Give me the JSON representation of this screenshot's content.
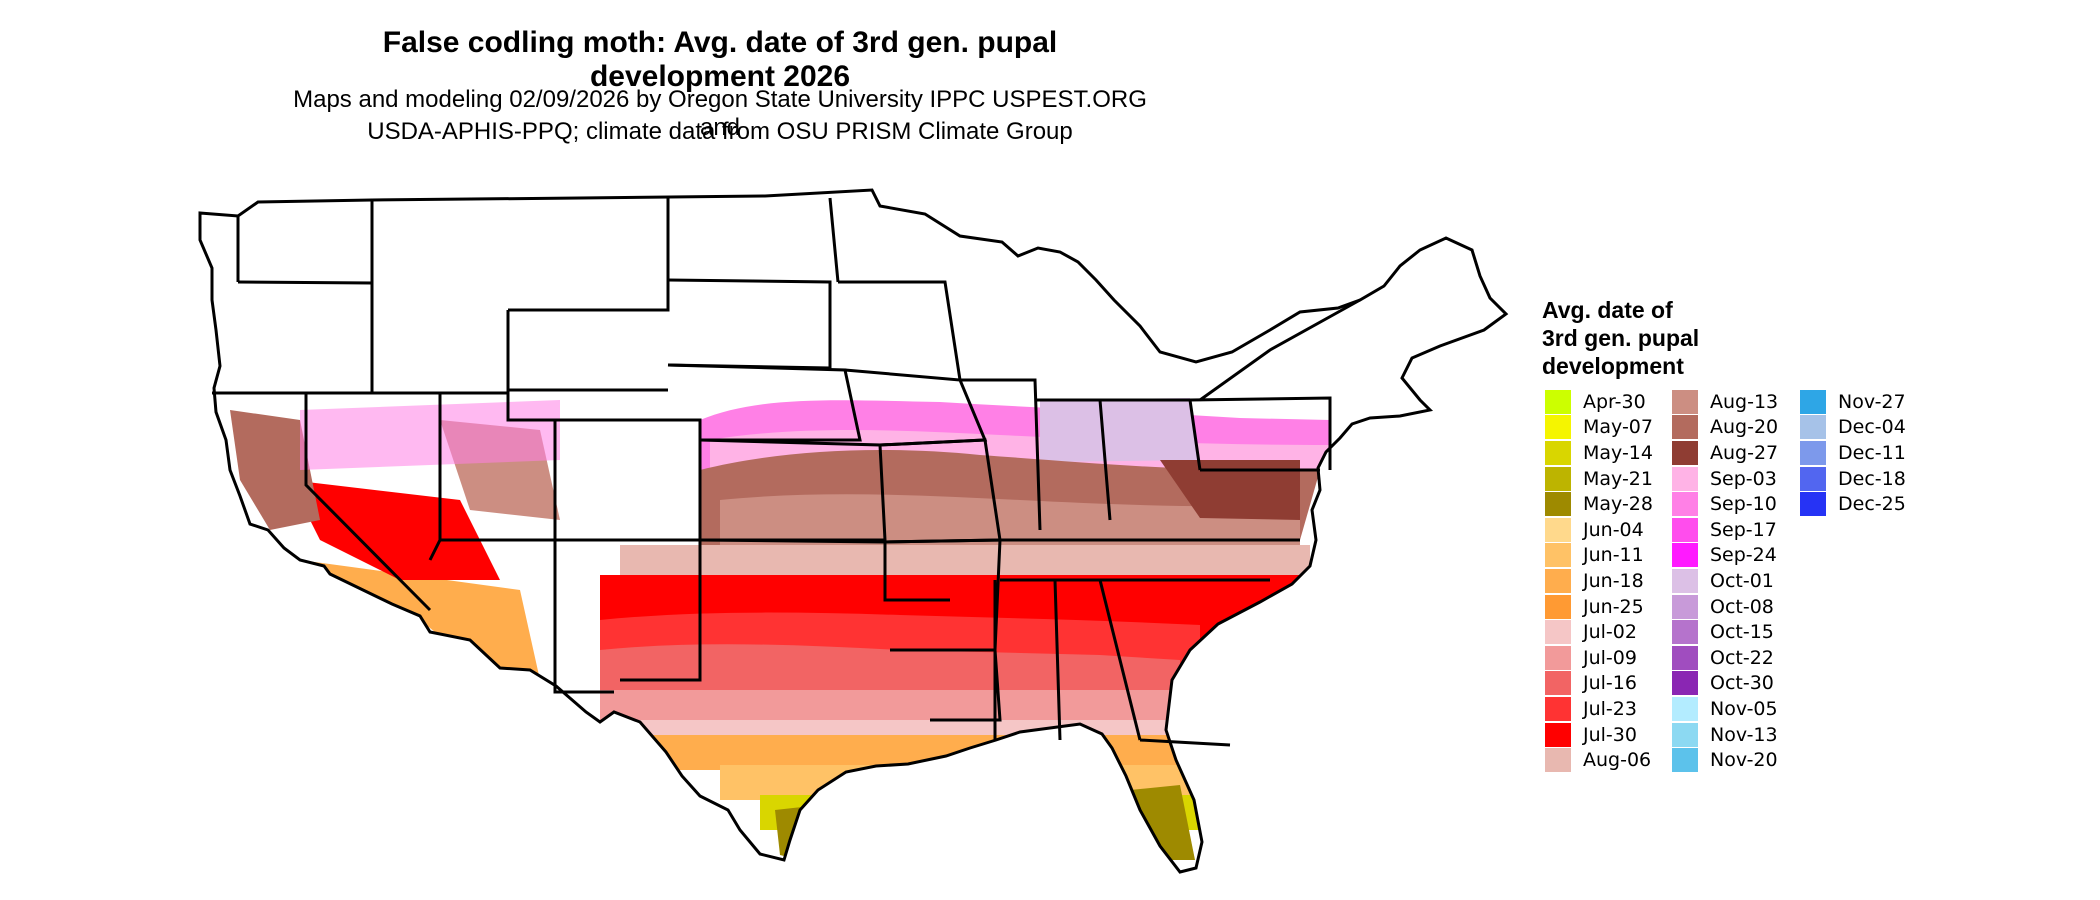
{
  "title": "False codling moth: Avg. date of 3rd gen. pupal development 2026",
  "subtitle_line1": "Maps and modeling 02/09/2026 by Oregon State University IPPC USPEST.ORG and",
  "subtitle_line2": "USDA-APHIS-PPQ; climate data from OSU PRISM Climate Group",
  "map": {
    "region": "Contiguous United States",
    "boundary_color": "#000000",
    "no_data_color": "#ffffff"
  },
  "legend": {
    "title_lines": [
      "Avg. date of",
      "3rd gen. pupal",
      "development"
    ],
    "columns": [
      [
        {
          "label": "Apr-30",
          "color": "#ccff00"
        },
        {
          "label": "May-07",
          "color": "#f5f500"
        },
        {
          "label": "May-14",
          "color": "#d9d600"
        },
        {
          "label": "May-21",
          "color": "#bdb400"
        },
        {
          "label": "May-28",
          "color": "#9e8a00"
        },
        {
          "label": "Jun-04",
          "color": "#ffd98c"
        },
        {
          "label": "Jun-11",
          "color": "#ffc266"
        },
        {
          "label": "Jun-18",
          "color": "#ffad4d"
        },
        {
          "label": "Jun-25",
          "color": "#ff9a33"
        },
        {
          "label": "Jul-02",
          "color": "#f5c6c6"
        },
        {
          "label": "Jul-09",
          "color": "#f29a9a"
        },
        {
          "label": "Jul-16",
          "color": "#f26464"
        },
        {
          "label": "Jul-23",
          "color": "#ff3333"
        },
        {
          "label": "Jul-30",
          "color": "#ff0000"
        },
        {
          "label": "Aug-06",
          "color": "#e8b8b0"
        }
      ],
      [
        {
          "label": "Aug-13",
          "color": "#cc8e82"
        },
        {
          "label": "Aug-20",
          "color": "#b36b5e"
        },
        {
          "label": "Aug-27",
          "color": "#8f3d33"
        },
        {
          "label": "Sep-03",
          "color": "#ffb3e6"
        },
        {
          "label": "Sep-10",
          "color": "#ff80e6"
        },
        {
          "label": "Sep-17",
          "color": "#ff4ded"
        },
        {
          "label": "Sep-24",
          "color": "#ff1aff"
        },
        {
          "label": "Oct-01",
          "color": "#dcc0e6"
        },
        {
          "label": "Oct-08",
          "color": "#c89ad9"
        },
        {
          "label": "Oct-15",
          "color": "#b573cc"
        },
        {
          "label": "Oct-22",
          "color": "#a04dbf"
        },
        {
          "label": "Oct-30",
          "color": "#8a26b3"
        },
        {
          "label": "Nov-05",
          "color": "#b3ecff"
        },
        {
          "label": "Nov-13",
          "color": "#8cd9f2"
        },
        {
          "label": "Nov-20",
          "color": "#5cc2eb"
        }
      ],
      [
        {
          "label": "Nov-27",
          "color": "#2ea6e6"
        },
        {
          "label": "Dec-04",
          "color": "#a6c2e8"
        },
        {
          "label": "Dec-11",
          "color": "#7d99eb"
        },
        {
          "label": "Dec-18",
          "color": "#5266f0"
        },
        {
          "label": "Dec-25",
          "color": "#2633f5"
        }
      ]
    ]
  }
}
